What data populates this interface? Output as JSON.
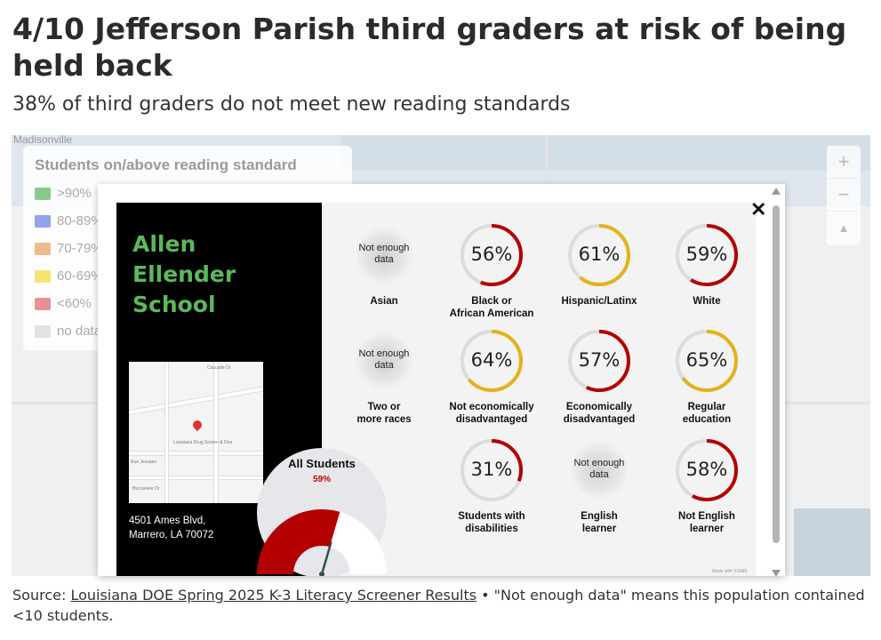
{
  "headline": "4/10 Jefferson Parish third graders at risk of being held back",
  "subhead": "38% of third graders do not meet new reading standards",
  "map": {
    "town_label": "Madisonville",
    "legend": {
      "title": "Students on/above reading standard",
      "items": [
        {
          "label": ">90%",
          "color": "#2e9e2e"
        },
        {
          "label": "80-89%",
          "color": "#3b5bdb"
        },
        {
          "label": "70-79%",
          "color": "#e8832a"
        },
        {
          "label": "60-69%",
          "color": "#f0d000"
        },
        {
          "label": "<60%",
          "color": "#d9363e"
        },
        {
          "label": "no data",
          "color": "#cccccc"
        }
      ]
    },
    "zoom_in": "+",
    "zoom_out": "−",
    "reset_north": "▲"
  },
  "popup": {
    "close": "✕",
    "school_name_lines": [
      "Allen",
      "Ellender",
      "School"
    ],
    "address_lines": [
      "4501 Ames Blvd,",
      "Marrero, LA 70072"
    ],
    "all_students": {
      "title": "All Students",
      "pct_label": "59%",
      "value": 59
    },
    "nodata_text_lines": [
      "Not enough",
      "data"
    ],
    "tiles": [
      {
        "label": [
          "Asian"
        ],
        "value": null,
        "pct": ""
      },
      {
        "label": [
          "Black or",
          "African American"
        ],
        "value": 56,
        "pct": "56%",
        "color": "#b30000"
      },
      {
        "label": [
          "Hispanic/Latinx"
        ],
        "value": 61,
        "pct": "61%",
        "color": "#e3b21a"
      },
      {
        "label": [
          "White"
        ],
        "value": 59,
        "pct": "59%",
        "color": "#b30000"
      },
      {
        "label": [
          "Two or",
          "more races"
        ],
        "value": null,
        "pct": ""
      },
      {
        "label": [
          "Not economically",
          "disadvantaged"
        ],
        "value": 64,
        "pct": "64%",
        "color": "#e3b21a"
      },
      {
        "label": [
          "Economically",
          "disadvantaged"
        ],
        "value": 57,
        "pct": "57%",
        "color": "#b30000"
      },
      {
        "label": [
          "Regular",
          "education"
        ],
        "value": 65,
        "pct": "65%",
        "color": "#e3b21a"
      },
      {
        "label": [
          "Students with",
          "disabilities"
        ],
        "value": 31,
        "pct": "31%",
        "color": "#b30000"
      },
      {
        "label": [
          "English",
          "learner"
        ],
        "value": null,
        "pct": ""
      },
      {
        "label": [
          "Not English",
          "learner"
        ],
        "value": 58,
        "pct": "58%",
        "color": "#b30000"
      }
    ],
    "watermark": "Made with VISME"
  },
  "source": {
    "prefix": "Source: ",
    "link_text": "Louisiana DOE Spring 2025 K-3 Literacy Screener Results",
    "suffix": " • \"Not enough data\" means this population contained <10 students."
  }
}
